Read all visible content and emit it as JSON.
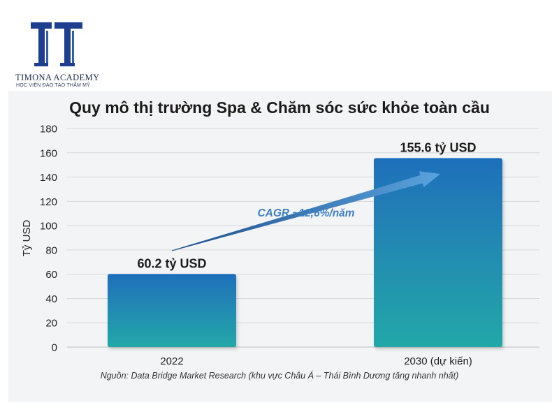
{
  "brand": {
    "name": "TIMONA ACADEMY",
    "tagline": "HỌC VIỆN ĐÀO TẠO THẨM MỸ",
    "logo_color": "#1e3f8f"
  },
  "chart_data": {
    "type": "bar",
    "title": "Quy mô thị trường Spa & Chăm sóc sức khỏe toàn cầu",
    "ylabel": "Tỷ USD",
    "xlabel": "",
    "categories": [
      "2022",
      "2030 (dự kiến)"
    ],
    "values": [
      60.2,
      155.6
    ],
    "data_labels": [
      "60.2 tỷ USD",
      "155.6 tỷ USD"
    ],
    "ylim": [
      0,
      180
    ],
    "yticks": [
      0,
      20,
      40,
      60,
      80,
      100,
      120,
      140,
      160,
      180
    ],
    "grid": true,
    "annotation": "CAGR ~12,6%/năm",
    "colors": {
      "bar_top": "#1f6fba",
      "bar_bottom": "#23a8a8",
      "arrow": "#2a6fb0",
      "annotation": "#3d7fc4"
    }
  },
  "source": "Nguồn: Data Bridge Market Research (khu vực Châu Á – Thái Bình Dương tăng nhanh nhất)"
}
